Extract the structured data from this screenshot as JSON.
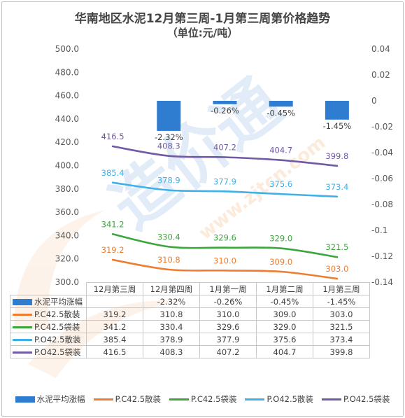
{
  "title": "华南地区水泥12月第三周-1月第三周第价格趋势",
  "subtitle": "（单位:元/吨）",
  "watermark": "造价通",
  "watermark_url": "www.zjtcn.com",
  "chart_data": {
    "type": "bar-line combo",
    "categories": [
      "12月第三周",
      "12月第四周",
      "1月第一周",
      "1月第二周",
      "1月第三周"
    ],
    "left_axis": {
      "ylim": [
        300,
        500
      ],
      "ticks": [
        "500.0",
        "480.0",
        "460.0",
        "440.0",
        "420.0",
        "400.0",
        "380.0",
        "360.0",
        "340.0",
        "320.0",
        "300.0"
      ]
    },
    "right_axis": {
      "ylim": [
        -0.14,
        0.04
      ],
      "ticks": [
        "0.04",
        "0.02",
        "0",
        "-0.02",
        "-0.04",
        "-0.06",
        "-0.08",
        "-0.1",
        "-0.12",
        "-0.14"
      ]
    },
    "bars": {
      "name": "水泥平均涨幅",
      "color": "#2e7dd1",
      "values": [
        null,
        -0.0232,
        -0.0026,
        -0.0045,
        -0.0145
      ],
      "labels": [
        "",
        "-2.32%",
        "-0.26%",
        "-0.45%",
        "-1.45%"
      ]
    },
    "series": [
      {
        "name": "P.C42.5散装",
        "color": "#ed7d31",
        "values": [
          319.2,
          310.8,
          310.0,
          309.0,
          303.0
        ],
        "labels": [
          "319.2",
          "310.8",
          "310.0",
          "309.0",
          "303.0"
        ]
      },
      {
        "name": "P.C42.5袋装",
        "color": "#3ca63c",
        "values": [
          341.2,
          330.4,
          329.6,
          329.0,
          321.5
        ],
        "labels": [
          "341.2",
          "330.4",
          "329.6",
          "329.0",
          "321.5"
        ]
      },
      {
        "name": "P.O42.5散装",
        "color": "#3fb1e8",
        "values": [
          385.4,
          378.9,
          377.9,
          375.6,
          373.4
        ],
        "labels": [
          "385.4",
          "378.9",
          "377.9",
          "375.6",
          "373.4"
        ]
      },
      {
        "name": "P.O42.5袋装",
        "color": "#7159a6",
        "values": [
          416.5,
          408.3,
          407.2,
          404.7,
          399.8
        ],
        "labels": [
          "416.5",
          "408.3",
          "407.2",
          "404.7",
          "399.8"
        ]
      }
    ]
  }
}
